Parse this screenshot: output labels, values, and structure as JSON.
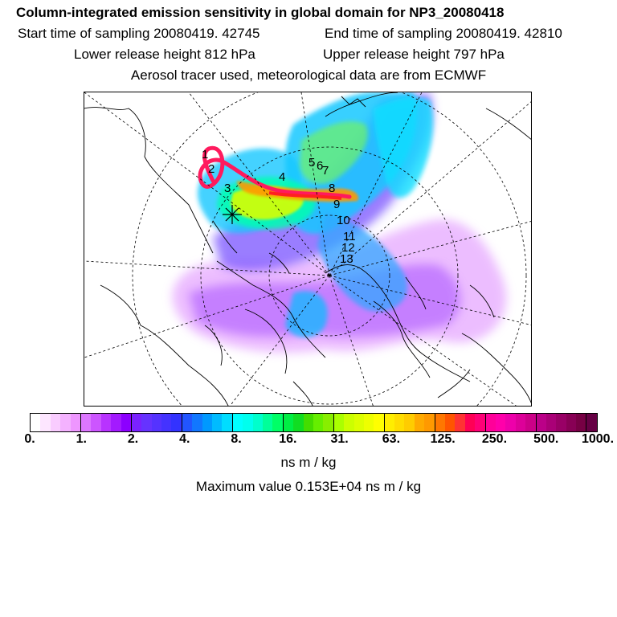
{
  "header": {
    "title": "Column-integrated emission sensitivity in global domain for NP3_20080418",
    "start_label": "Start time of sampling 20080419. 42745",
    "end_label": "End time of sampling 20080419. 42810",
    "lower_label": "Lower release height  812 hPa",
    "upper_label": "Upper release height  797 hPa",
    "tracer_label": "Aerosol tracer used, meteorological data are from ECMWF"
  },
  "map": {
    "trajectory_labels": [
      "1",
      "2",
      "3",
      "4",
      "5",
      "6",
      "7",
      "8",
      "9",
      "10",
      "11",
      "12",
      "13"
    ]
  },
  "colorbar": {
    "colors": [
      "#ffffff",
      "#fde6ff",
      "#f9ccff",
      "#f4b2ff",
      "#ee96ff",
      "#dd77ff",
      "#cc55ff",
      "#b833ff",
      "#a31aff",
      "#8c00ff",
      "#7a22ff",
      "#6633ff",
      "#5533ff",
      "#4433ff",
      "#3333ff",
      "#2255ff",
      "#1177ff",
      "#0099ff",
      "#00bbff",
      "#00ddff",
      "#00ffff",
      "#00ffee",
      "#00ffcc",
      "#00ff99",
      "#00ff66",
      "#00ee44",
      "#11dd22",
      "#44dd00",
      "#66ee00",
      "#88ee00",
      "#aaff00",
      "#ccff00",
      "#ddff00",
      "#eeff00",
      "#ffff00",
      "#ffee00",
      "#ffdd00",
      "#ffcc00",
      "#ffaa00",
      "#ff9900",
      "#ff7700",
      "#ff5500",
      "#ff3333",
      "#ff0055",
      "#ff0077",
      "#ff0099",
      "#ff00aa",
      "#ee00aa",
      "#dd0099",
      "#cc0088",
      "#bb0088",
      "#aa0077",
      "#990066",
      "#880055",
      "#770044",
      "#660044"
    ],
    "ticks": [
      "0.",
      "1.",
      "2.",
      "4.",
      "8.",
      "16.",
      "31.",
      "63.",
      "125.",
      "250.",
      "500.",
      "1000."
    ],
    "units": "ns m / kg",
    "max_label": "Maximum value  0.153E+04 ns m / kg"
  }
}
